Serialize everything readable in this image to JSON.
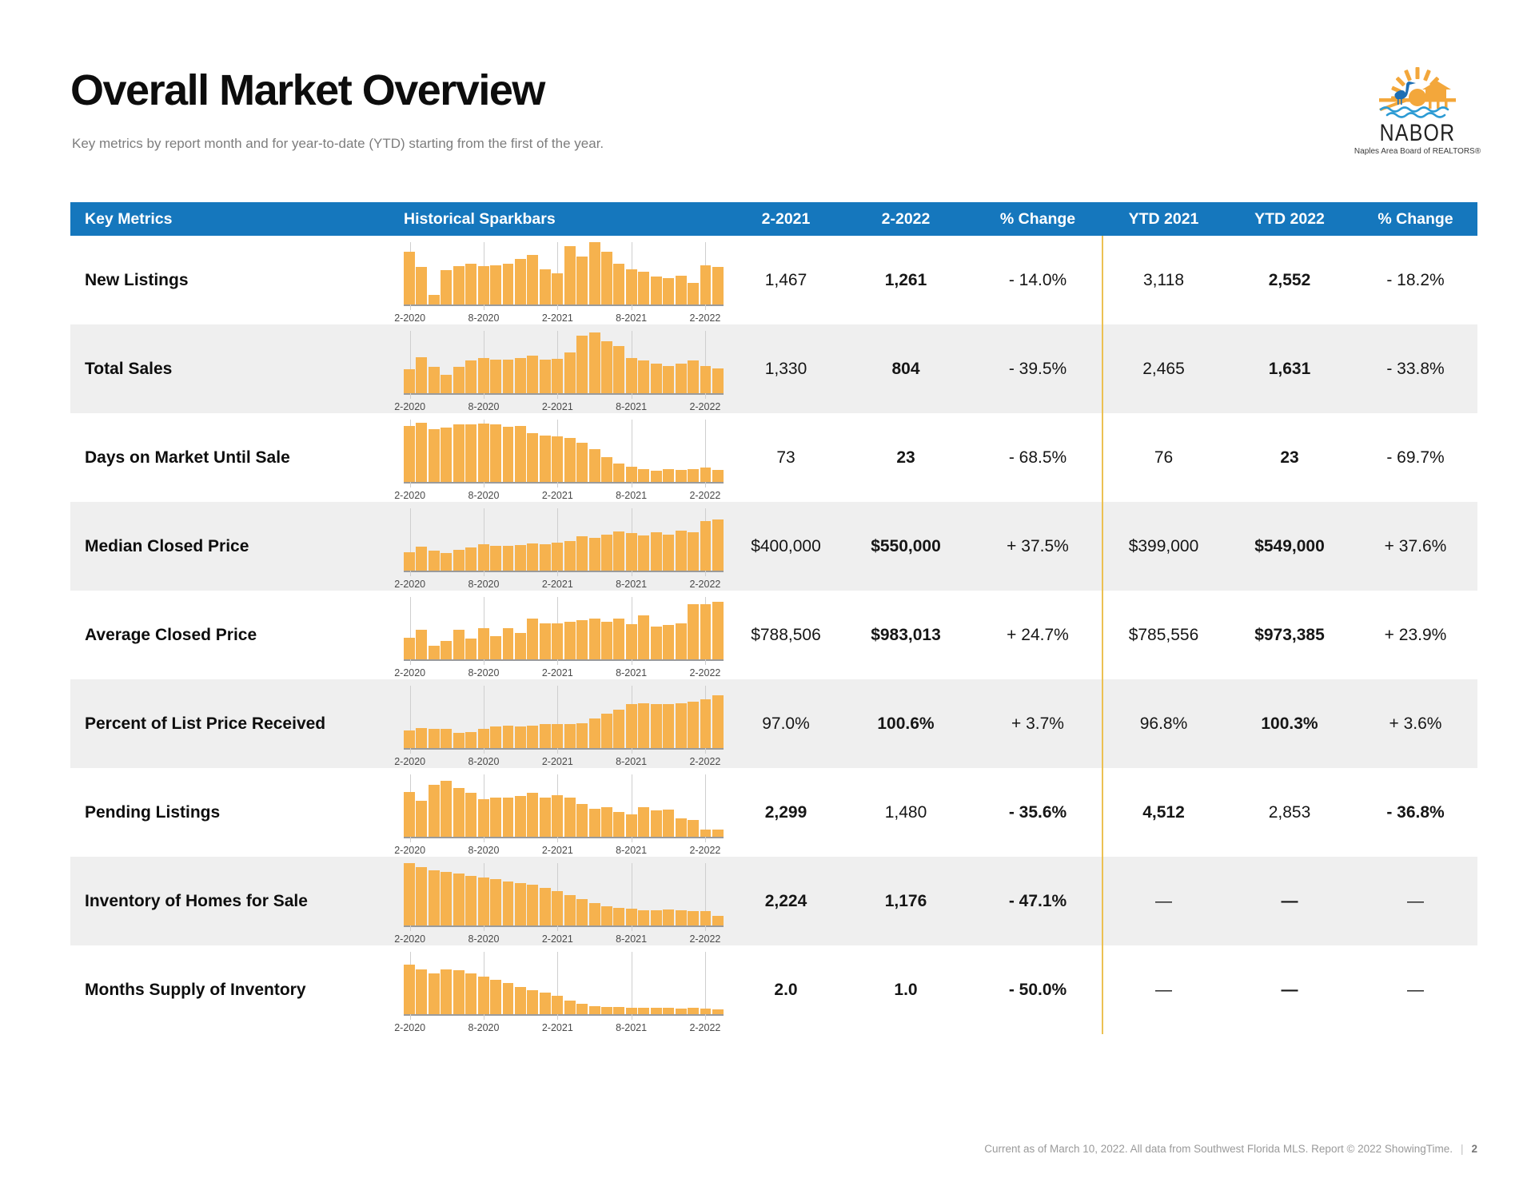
{
  "page": {
    "title": "Overall Market Overview",
    "subtitle": "Key metrics by report month and for year-to-date (YTD) starting from the first of the year.",
    "footer": {
      "text": "Current as of March 10, 2022. All data from Southwest Florida MLS. Report © 2022 ShowingTime.",
      "separator": "|",
      "page_number": "2"
    }
  },
  "logo": {
    "name": "NABOR",
    "tagline": "Naples Area Board of REALTORS®"
  },
  "colors": {
    "header_blue": "#1577BD",
    "bar_orange": "#F6B24E",
    "row_alt_gray": "#EFEFEF",
    "divider_gold": "#ECC153"
  },
  "table": {
    "headers": [
      "Key Metrics",
      "Historical Sparkbars",
      "2-2021",
      "2-2022",
      "% Change",
      "YTD 2021",
      "YTD 2022",
      "% Change"
    ],
    "spark_ticks": [
      "2-2020",
      "8-2020",
      "2-2021",
      "8-2021",
      "2-2022"
    ],
    "rows": [
      {
        "label": "New Listings",
        "values": [
          "1,467",
          "1,261",
          "- 14.0%",
          "3,118",
          "2,552",
          "- 18.2%"
        ],
        "bold": [
          false,
          true,
          false,
          false,
          true,
          false
        ],
        "spark": [
          0.85,
          0.6,
          0.15,
          0.55,
          0.62,
          0.66,
          0.61,
          0.63,
          0.66,
          0.73,
          0.8,
          0.56,
          0.5,
          0.93,
          0.77,
          1.0,
          0.85,
          0.65,
          0.56,
          0.53,
          0.45,
          0.42,
          0.46,
          0.34,
          0.63,
          0.6
        ]
      },
      {
        "label": "Total Sales",
        "values": [
          "1,330",
          "804",
          "- 39.5%",
          "2,465",
          "1,631",
          "- 33.8%"
        ],
        "bold": [
          false,
          true,
          false,
          false,
          true,
          false
        ],
        "spark": [
          0.38,
          0.58,
          0.42,
          0.3,
          0.42,
          0.52,
          0.56,
          0.54,
          0.54,
          0.57,
          0.6,
          0.54,
          0.55,
          0.66,
          0.92,
          0.97,
          0.83,
          0.76,
          0.57,
          0.53,
          0.47,
          0.44,
          0.47,
          0.52,
          0.43,
          0.4
        ]
      },
      {
        "label": "Days on Market Until Sale",
        "values": [
          "73",
          "23",
          "- 68.5%",
          "76",
          "23",
          "- 69.7%"
        ],
        "bold": [
          false,
          true,
          false,
          false,
          true,
          false
        ],
        "spark": [
          0.9,
          0.95,
          0.85,
          0.87,
          0.92,
          0.92,
          0.93,
          0.92,
          0.88,
          0.9,
          0.78,
          0.75,
          0.73,
          0.7,
          0.63,
          0.52,
          0.4,
          0.3,
          0.25,
          0.21,
          0.18,
          0.2,
          0.19,
          0.21,
          0.23,
          0.19
        ]
      },
      {
        "label": "Median Closed Price",
        "values": [
          "$400,000",
          "$550,000",
          "+ 37.5%",
          "$399,000",
          "$549,000",
          "+ 37.6%"
        ],
        "bold": [
          false,
          true,
          false,
          false,
          true,
          false
        ],
        "spark": [
          0.3,
          0.38,
          0.32,
          0.28,
          0.33,
          0.37,
          0.42,
          0.4,
          0.4,
          0.41,
          0.44,
          0.42,
          0.45,
          0.48,
          0.55,
          0.52,
          0.58,
          0.63,
          0.6,
          0.56,
          0.62,
          0.58,
          0.64,
          0.62,
          0.8,
          0.82
        ]
      },
      {
        "label": "Average Closed Price",
        "values": [
          "$788,506",
          "$983,013",
          "+ 24.7%",
          "$785,556",
          "$973,385",
          "+ 23.9%"
        ],
        "bold": [
          false,
          true,
          false,
          false,
          true,
          false
        ],
        "spark": [
          0.35,
          0.48,
          0.22,
          0.3,
          0.48,
          0.33,
          0.5,
          0.37,
          0.5,
          0.42,
          0.65,
          0.58,
          0.58,
          0.6,
          0.63,
          0.65,
          0.6,
          0.65,
          0.57,
          0.7,
          0.52,
          0.55,
          0.58,
          0.88,
          0.88,
          0.92
        ]
      },
      {
        "label": "Percent of List Price Received",
        "values": [
          "97.0%",
          "100.6%",
          "+ 3.7%",
          "96.8%",
          "100.3%",
          "+ 3.6%"
        ],
        "bold": [
          false,
          true,
          false,
          false,
          true,
          false
        ],
        "spark": [
          0.28,
          0.32,
          0.31,
          0.31,
          0.25,
          0.26,
          0.31,
          0.34,
          0.36,
          0.34,
          0.36,
          0.38,
          0.38,
          0.38,
          0.4,
          0.47,
          0.55,
          0.62,
          0.7,
          0.72,
          0.7,
          0.7,
          0.72,
          0.74,
          0.78,
          0.85
        ]
      },
      {
        "label": "Pending Listings",
        "values": [
          "2,299",
          "1,480",
          "- 35.6%",
          "4,512",
          "2,853",
          "- 36.8%"
        ],
        "bold": [
          true,
          false,
          true,
          true,
          false,
          true
        ],
        "spark": [
          0.72,
          0.58,
          0.83,
          0.9,
          0.78,
          0.7,
          0.6,
          0.63,
          0.63,
          0.66,
          0.7,
          0.63,
          0.67,
          0.63,
          0.53,
          0.45,
          0.48,
          0.4,
          0.36,
          0.47,
          0.42,
          0.43,
          0.3,
          0.27,
          0.12,
          0.12
        ]
      },
      {
        "label": "Inventory of Homes for Sale",
        "values": [
          "2,224",
          "1,176",
          "- 47.1%",
          "—",
          "—",
          "—"
        ],
        "bold": [
          true,
          true,
          true,
          false,
          true,
          false
        ],
        "spark": [
          1.0,
          0.94,
          0.89,
          0.86,
          0.83,
          0.8,
          0.77,
          0.74,
          0.71,
          0.68,
          0.65,
          0.6,
          0.55,
          0.49,
          0.42,
          0.36,
          0.31,
          0.28,
          0.27,
          0.25,
          0.24,
          0.26,
          0.25,
          0.23,
          0.23,
          0.15
        ]
      },
      {
        "label": "Months Supply of Inventory",
        "values": [
          "2.0",
          "1.0",
          "- 50.0%",
          "—",
          "—",
          "—"
        ],
        "bold": [
          true,
          true,
          true,
          false,
          true,
          false
        ],
        "spark": [
          0.8,
          0.72,
          0.66,
          0.72,
          0.7,
          0.66,
          0.6,
          0.55,
          0.5,
          0.44,
          0.38,
          0.34,
          0.29,
          0.22,
          0.17,
          0.13,
          0.12,
          0.11,
          0.1,
          0.1,
          0.1,
          0.1,
          0.09,
          0.1,
          0.09,
          0.08
        ]
      }
    ]
  },
  "chart_data": [
    {
      "type": "bar",
      "title": "New Listings sparkbar",
      "x_ticks": [
        "2-2020",
        "8-2020",
        "2-2021",
        "8-2021",
        "2-2022"
      ],
      "y_range": [
        0,
        1
      ],
      "values": [
        0.85,
        0.6,
        0.15,
        0.55,
        0.62,
        0.66,
        0.61,
        0.63,
        0.66,
        0.73,
        0.8,
        0.56,
        0.5,
        0.93,
        0.77,
        1.0,
        0.85,
        0.65,
        0.56,
        0.53,
        0.45,
        0.42,
        0.46,
        0.34,
        0.63,
        0.6
      ]
    },
    {
      "type": "bar",
      "title": "Total Sales sparkbar",
      "x_ticks": [
        "2-2020",
        "8-2020",
        "2-2021",
        "8-2021",
        "2-2022"
      ],
      "y_range": [
        0,
        1
      ],
      "values": [
        0.38,
        0.58,
        0.42,
        0.3,
        0.42,
        0.52,
        0.56,
        0.54,
        0.54,
        0.57,
        0.6,
        0.54,
        0.55,
        0.66,
        0.92,
        0.97,
        0.83,
        0.76,
        0.57,
        0.53,
        0.47,
        0.44,
        0.47,
        0.52,
        0.43,
        0.4
      ]
    },
    {
      "type": "bar",
      "title": "Days on Market Until Sale sparkbar",
      "x_ticks": [
        "2-2020",
        "8-2020",
        "2-2021",
        "8-2021",
        "2-2022"
      ],
      "y_range": [
        0,
        1
      ],
      "values": [
        0.9,
        0.95,
        0.85,
        0.87,
        0.92,
        0.92,
        0.93,
        0.92,
        0.88,
        0.9,
        0.78,
        0.75,
        0.73,
        0.7,
        0.63,
        0.52,
        0.4,
        0.3,
        0.25,
        0.21,
        0.18,
        0.2,
        0.19,
        0.21,
        0.23,
        0.19
      ]
    },
    {
      "type": "bar",
      "title": "Median Closed Price sparkbar",
      "x_ticks": [
        "2-2020",
        "8-2020",
        "2-2021",
        "8-2021",
        "2-2022"
      ],
      "y_range": [
        0,
        1
      ],
      "values": [
        0.3,
        0.38,
        0.32,
        0.28,
        0.33,
        0.37,
        0.42,
        0.4,
        0.4,
        0.41,
        0.44,
        0.42,
        0.45,
        0.48,
        0.55,
        0.52,
        0.58,
        0.63,
        0.6,
        0.56,
        0.62,
        0.58,
        0.64,
        0.62,
        0.8,
        0.82
      ]
    },
    {
      "type": "bar",
      "title": "Average Closed Price sparkbar",
      "x_ticks": [
        "2-2020",
        "8-2020",
        "2-2021",
        "8-2021",
        "2-2022"
      ],
      "y_range": [
        0,
        1
      ],
      "values": [
        0.35,
        0.48,
        0.22,
        0.3,
        0.48,
        0.33,
        0.5,
        0.37,
        0.5,
        0.42,
        0.65,
        0.58,
        0.58,
        0.6,
        0.63,
        0.65,
        0.6,
        0.65,
        0.57,
        0.7,
        0.52,
        0.55,
        0.58,
        0.88,
        0.88,
        0.92
      ]
    },
    {
      "type": "bar",
      "title": "Percent of List Price Received sparkbar",
      "x_ticks": [
        "2-2020",
        "8-2020",
        "2-2021",
        "8-2021",
        "2-2022"
      ],
      "y_range": [
        0,
        1
      ],
      "values": [
        0.28,
        0.32,
        0.31,
        0.31,
        0.25,
        0.26,
        0.31,
        0.34,
        0.36,
        0.34,
        0.36,
        0.38,
        0.38,
        0.38,
        0.4,
        0.47,
        0.55,
        0.62,
        0.7,
        0.72,
        0.7,
        0.7,
        0.72,
        0.74,
        0.78,
        0.85
      ]
    },
    {
      "type": "bar",
      "title": "Pending Listings sparkbar",
      "x_ticks": [
        "2-2020",
        "8-2020",
        "2-2021",
        "8-2021",
        "2-2022"
      ],
      "y_range": [
        0,
        1
      ],
      "values": [
        0.72,
        0.58,
        0.83,
        0.9,
        0.78,
        0.7,
        0.6,
        0.63,
        0.63,
        0.66,
        0.7,
        0.63,
        0.67,
        0.63,
        0.53,
        0.45,
        0.48,
        0.4,
        0.36,
        0.47,
        0.42,
        0.43,
        0.3,
        0.27,
        0.12,
        0.12
      ]
    },
    {
      "type": "bar",
      "title": "Inventory of Homes for Sale sparkbar",
      "x_ticks": [
        "2-2020",
        "8-2020",
        "2-2021",
        "8-2021",
        "2-2022"
      ],
      "y_range": [
        0,
        1
      ],
      "values": [
        1.0,
        0.94,
        0.89,
        0.86,
        0.83,
        0.8,
        0.77,
        0.74,
        0.71,
        0.68,
        0.65,
        0.6,
        0.55,
        0.49,
        0.42,
        0.36,
        0.31,
        0.28,
        0.27,
        0.25,
        0.24,
        0.26,
        0.25,
        0.23,
        0.23,
        0.15
      ]
    },
    {
      "type": "bar",
      "title": "Months Supply of Inventory sparkbar",
      "x_ticks": [
        "2-2020",
        "8-2020",
        "2-2021",
        "8-2021",
        "2-2022"
      ],
      "y_range": [
        0,
        1
      ],
      "values": [
        0.8,
        0.72,
        0.66,
        0.72,
        0.7,
        0.66,
        0.6,
        0.55,
        0.5,
        0.44,
        0.38,
        0.34,
        0.29,
        0.22,
        0.17,
        0.13,
        0.12,
        0.11,
        0.1,
        0.1,
        0.1,
        0.1,
        0.09,
        0.1,
        0.09,
        0.08
      ]
    }
  ]
}
